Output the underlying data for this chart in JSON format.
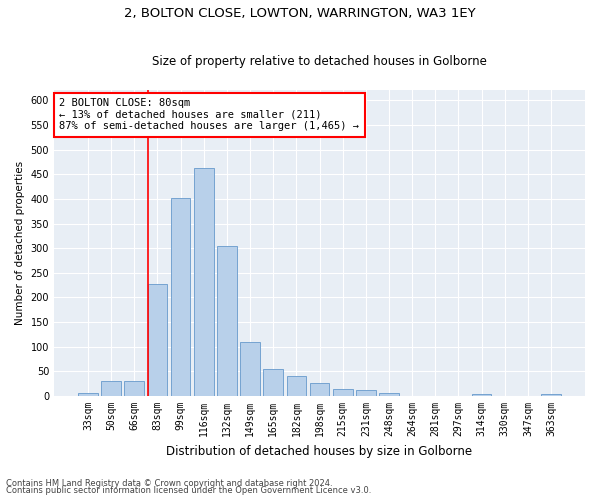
{
  "title1": "2, BOLTON CLOSE, LOWTON, WARRINGTON, WA3 1EY",
  "title2": "Size of property relative to detached houses in Golborne",
  "xlabel": "Distribution of detached houses by size in Golborne",
  "ylabel": "Number of detached properties",
  "categories": [
    "33sqm",
    "50sqm",
    "66sqm",
    "83sqm",
    "99sqm",
    "116sqm",
    "132sqm",
    "149sqm",
    "165sqm",
    "182sqm",
    "198sqm",
    "215sqm",
    "231sqm",
    "248sqm",
    "264sqm",
    "281sqm",
    "297sqm",
    "314sqm",
    "330sqm",
    "347sqm",
    "363sqm"
  ],
  "values": [
    7,
    30,
    30,
    228,
    402,
    463,
    305,
    110,
    54,
    40,
    27,
    14,
    12,
    7,
    0,
    0,
    0,
    5,
    0,
    0,
    5
  ],
  "bar_color": "#b8d0ea",
  "bar_edge_color": "#6699cc",
  "vline_x_index": 3,
  "vline_color": "red",
  "annotation_text": "2 BOLTON CLOSE: 80sqm\n← 13% of detached houses are smaller (211)\n87% of semi-detached houses are larger (1,465) →",
  "annotation_box_color": "white",
  "annotation_box_edge": "red",
  "ylim": [
    0,
    620
  ],
  "yticks": [
    0,
    50,
    100,
    150,
    200,
    250,
    300,
    350,
    400,
    450,
    500,
    550,
    600
  ],
  "footer1": "Contains HM Land Registry data © Crown copyright and database right 2024.",
  "footer2": "Contains public sector information licensed under the Open Government Licence v3.0.",
  "plot_bg_color": "#e8eef5",
  "title1_fontsize": 9.5,
  "title2_fontsize": 8.5,
  "xlabel_fontsize": 8.5,
  "ylabel_fontsize": 7.5,
  "tick_fontsize": 7,
  "annot_fontsize": 7.5,
  "footer_fontsize": 6
}
